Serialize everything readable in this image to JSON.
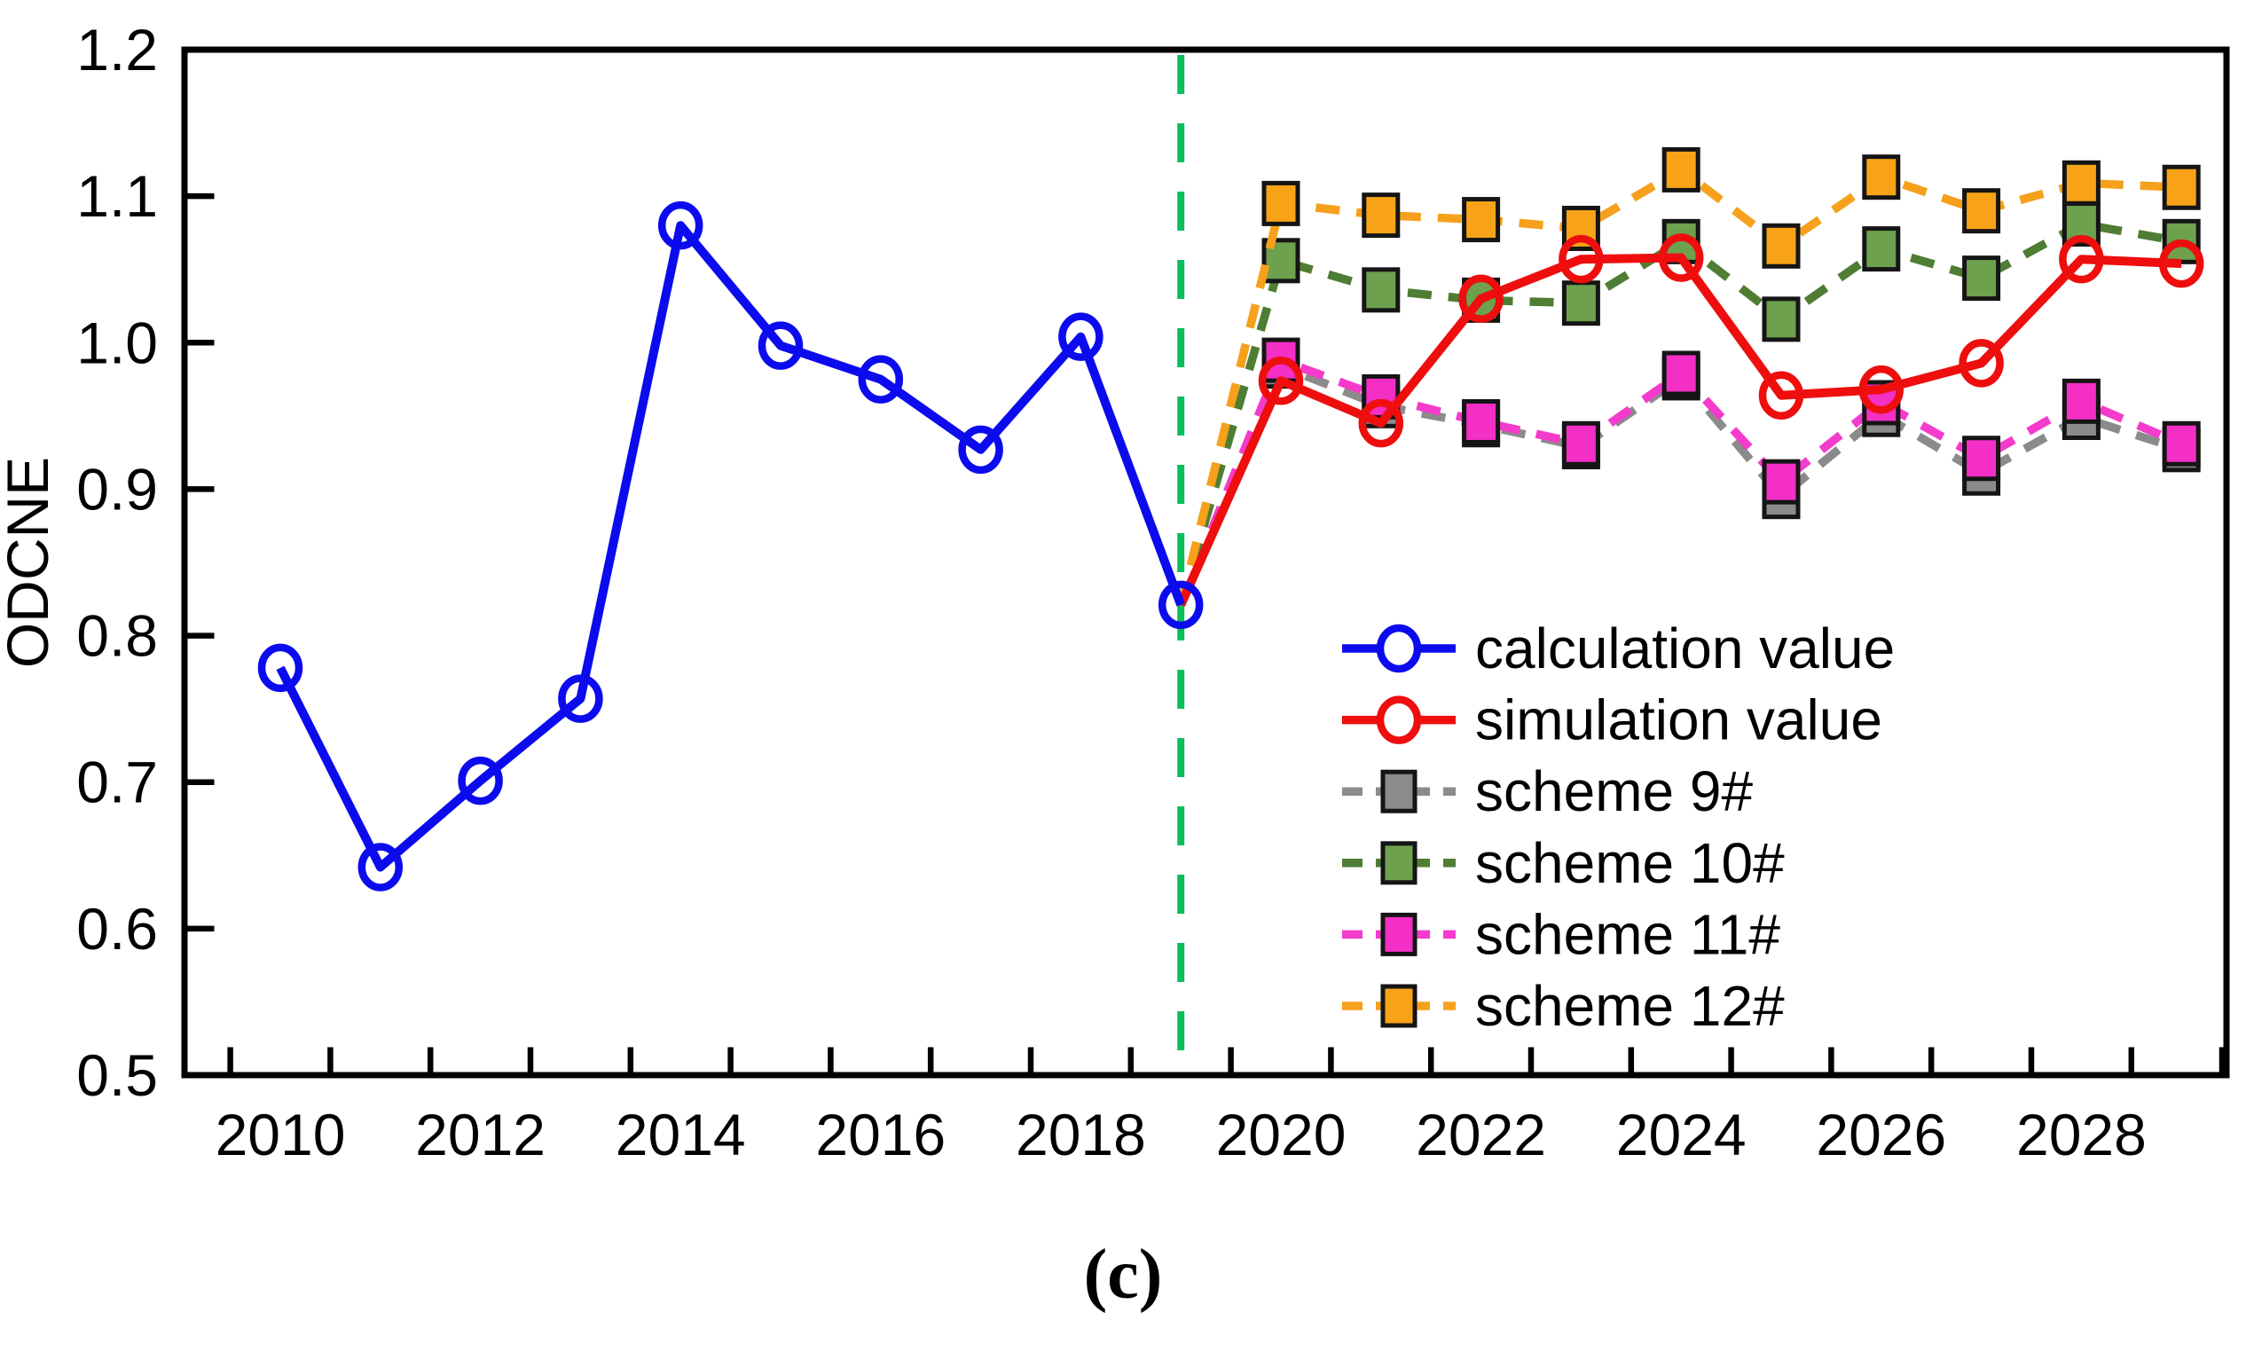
{
  "figure": {
    "caption": "(c)",
    "background": "#ffffff"
  },
  "chart_data": {
    "type": "line",
    "title": "",
    "xlabel": "",
    "ylabel": "ODCNE",
    "ylim": [
      0.5,
      1.2
    ],
    "yticks": [
      0.5,
      0.6,
      0.7,
      0.8,
      0.9,
      1.0,
      1.1,
      1.2
    ],
    "ytick_labels": [
      "0.5",
      "0.6",
      "0.7",
      "0.8",
      "0.9",
      "1.0",
      "1.1",
      "1.2"
    ],
    "xlim": [
      2009.5,
      2029.5
    ],
    "xtick_years": [
      2010,
      2012,
      2014,
      2016,
      2018,
      2020,
      2022,
      2024,
      2026,
      2028
    ],
    "xtick_labels": [
      "2010",
      "2012",
      "2014",
      "2016",
      "2018",
      "2020",
      "2022",
      "2024",
      "2026",
      "2028"
    ],
    "grid": false,
    "legend_position": "lower right",
    "divider": {
      "x": 2019,
      "color": "#0ABE5C",
      "style": "dashed"
    },
    "series": [
      {
        "name": "calculation value",
        "color": "#0B0BEE",
        "marker": "circle",
        "line": "solid",
        "x": [
          2010,
          2011,
          2012,
          2013,
          2014,
          2015,
          2016,
          2017,
          2018,
          2019
        ],
        "values": [
          0.778,
          0.642,
          0.701,
          0.757,
          1.08,
          0.998,
          0.975,
          0.927,
          1.004,
          0.821
        ]
      },
      {
        "name": "simulation value",
        "color": "#EE0E0E",
        "marker": "circle",
        "line": "solid",
        "anchor": {
          "x": 2019,
          "y": 0.821
        },
        "x": [
          2020,
          2021,
          2022,
          2023,
          2024,
          2025,
          2026,
          2027,
          2028,
          2029
        ],
        "values": [
          0.974,
          0.945,
          1.03,
          1.057,
          1.058,
          0.964,
          0.968,
          0.986,
          1.057,
          1.054
        ]
      },
      {
        "name": "scheme 9#",
        "color": "#8B8B8B",
        "marker_fill": "#8B8B8B",
        "marker": "square",
        "line": "dashed",
        "anchor": {
          "x": 2019,
          "y": 0.821
        },
        "x": [
          2020,
          2021,
          2022,
          2023,
          2024,
          2025,
          2026,
          2027,
          2028,
          2029
        ],
        "values": [
          0.984,
          0.957,
          0.944,
          0.929,
          0.976,
          0.895,
          0.951,
          0.911,
          0.949,
          0.927
        ]
      },
      {
        "name": "scheme 10#",
        "color": "#4E7D33",
        "marker_fill": "#6DA14E",
        "marker": "square",
        "line": "dashed",
        "anchor": {
          "x": 2019,
          "y": 0.821
        },
        "x": [
          2020,
          2021,
          2022,
          2023,
          2024,
          2025,
          2026,
          2027,
          2028,
          2029
        ],
        "values": [
          1.056,
          1.036,
          1.029,
          1.027,
          1.069,
          1.016,
          1.064,
          1.044,
          1.081,
          1.069
        ]
      },
      {
        "name": "scheme 11#",
        "color": "#F43BCB",
        "marker_fill": "#F32FC6",
        "marker": "square",
        "line": "dashed",
        "anchor": {
          "x": 2019,
          "y": 0.821
        },
        "x": [
          2020,
          2021,
          2022,
          2023,
          2024,
          2025,
          2026,
          2027,
          2028,
          2029
        ],
        "values": [
          0.988,
          0.963,
          0.946,
          0.931,
          0.979,
          0.905,
          0.959,
          0.921,
          0.96,
          0.931
        ]
      },
      {
        "name": "scheme 12#",
        "color": "#F6A01C",
        "marker_fill": "#F8A317",
        "marker": "square",
        "line": "dashed",
        "anchor": {
          "x": 2019,
          "y": 0.821
        },
        "x": [
          2020,
          2021,
          2022,
          2023,
          2024,
          2025,
          2026,
          2027,
          2028,
          2029
        ],
        "values": [
          1.095,
          1.087,
          1.084,
          1.078,
          1.118,
          1.066,
          1.113,
          1.09,
          1.109,
          1.106
        ]
      }
    ]
  }
}
